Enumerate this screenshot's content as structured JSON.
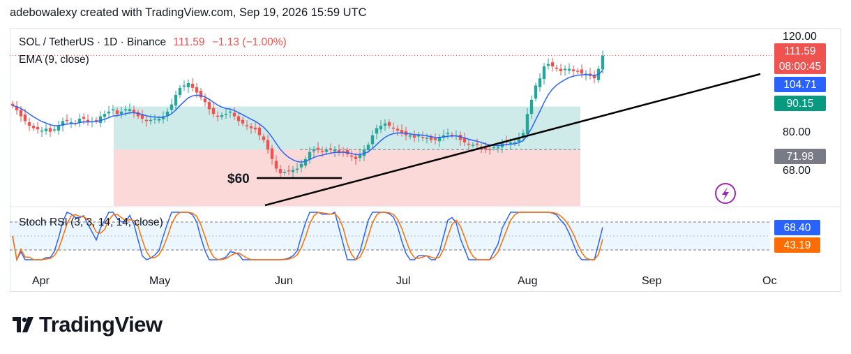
{
  "credit": "adebowalexy created with TradingView.com, Sep 19, 2026 15:59 UTC",
  "logo": "TradingView",
  "colors": {
    "up": "#26a69a",
    "down": "#ef5350",
    "ema": "#2962ff",
    "k": "#2962ff",
    "d": "#ff6d00",
    "trend": "#000000"
  },
  "chart_data": {
    "type": "candlestick",
    "symbol": "SOL / TetherUS · 1D · Binance",
    "last_price": "111.59",
    "change": "−1.13 (−1.00%)",
    "indicator": "EMA (9, close)",
    "oscillator": "Stoch RSI (3, 3, 14, 14, close)",
    "y_ticks": [
      "120.00",
      "80.00",
      "68.00"
    ],
    "x_ticks": [
      "Apr",
      "May",
      "Jun",
      "Jul",
      "Aug",
      "Sep",
      "Oc"
    ],
    "price_tags": [
      {
        "value": "111.59",
        "sub": "08:00:45",
        "color": "#ef5350"
      },
      {
        "value": "104.71",
        "color": "#2962ff"
      },
      {
        "value": "90.15",
        "color": "#089981"
      },
      {
        "value": "71.98",
        "color": "#787b86"
      }
    ],
    "stoch_tags": [
      {
        "value": "68.40",
        "color": "#2962ff"
      },
      {
        "value": "43.19",
        "color": "#ff6d00"
      }
    ],
    "annotation": "$60",
    "position_box": {
      "entry": 71.98,
      "target": 90.15,
      "stop": 60
    },
    "trendline": "rising support line from early June low toward late-September",
    "closes": [
      90.5,
      88.5,
      86,
      84,
      82,
      81,
      80.5,
      80,
      80.8,
      79.5,
      80.5,
      82,
      84,
      84,
      83.5,
      83,
      85,
      85,
      83.5,
      84,
      84,
      86,
      87,
      88,
      89,
      87,
      88,
      89,
      89,
      87.5,
      86,
      85,
      84,
      84.5,
      85,
      85,
      86,
      88,
      91,
      95,
      98,
      99,
      100,
      98,
      96,
      94,
      92,
      89,
      87,
      86,
      86.5,
      87,
      88,
      86,
      84,
      83,
      82,
      81,
      80.5,
      78,
      76,
      72,
      68,
      64,
      62,
      62.5,
      63,
      63.5,
      64,
      66,
      68,
      71,
      72,
      72,
      71,
      72,
      72,
      72,
      71,
      71,
      70,
      69,
      68,
      70,
      72,
      74,
      78,
      81,
      82,
      83,
      82,
      81,
      80,
      79,
      78,
      78,
      77,
      78,
      77,
      77,
      76,
      76,
      77,
      78,
      79,
      78,
      78,
      76,
      75,
      74,
      74,
      74,
      73,
      72,
      72,
      73,
      73,
      75,
      75,
      75,
      75,
      77,
      79,
      87,
      93,
      99,
      102,
      107,
      108,
      107,
      106,
      105,
      106,
      106,
      105,
      105,
      104,
      104,
      103,
      102,
      106,
      111.59
    ],
    "ema9_last": 104.71,
    "stoch_k_last": 68.4,
    "stoch_d_last": 43.19
  }
}
